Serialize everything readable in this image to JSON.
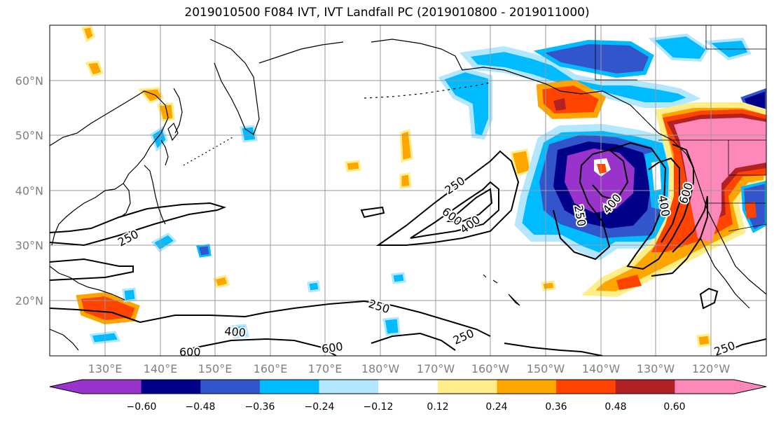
{
  "title": "2019010500 F084 IVT, IVT Landfall PC (2019010800 - 2019011000)",
  "lat_labels": [
    "60°N",
    "50°N",
    "40°N",
    "30°N",
    "20°N"
  ],
  "lon_labels": [
    "130°E",
    "140°E",
    "150°E",
    "160°E",
    "170°E",
    "180°W",
    "170°W",
    "160°W",
    "150°W",
    "140°W",
    "130°W",
    "120°W"
  ],
  "contour_labels": [
    "250",
    "250",
    "250",
    "250",
    "250",
    "250",
    "400",
    "400",
    "400",
    "400",
    "600",
    "600",
    "600",
    "600"
  ],
  "colorbar": {
    "colors": [
      "#9933cc",
      "#000088",
      "#3355cc",
      "#00bbff",
      "#b3e6ff",
      "#ffffff",
      "#ffee88",
      "#ffa500",
      "#ff4400",
      "#b22222",
      "#ff88bb"
    ],
    "tick_labels": [
      "−0.60",
      "−0.48",
      "−0.36",
      "−0.24",
      "−0.12",
      "0.12",
      "0.24",
      "0.36",
      "0.48",
      "0.60"
    ]
  }
}
